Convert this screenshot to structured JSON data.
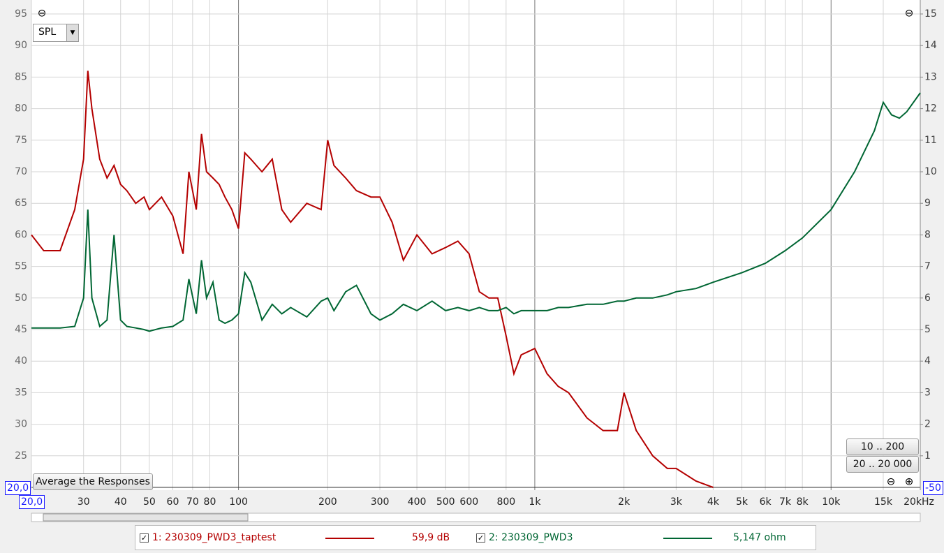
{
  "chart_data": {
    "type": "line",
    "x": [
      20,
      22,
      25,
      28,
      30,
      31,
      32,
      34,
      36,
      38,
      40,
      42,
      45,
      48,
      50,
      55,
      60,
      65,
      68,
      72,
      75,
      78,
      82,
      86,
      90,
      95,
      100,
      105,
      110,
      120,
      130,
      140,
      150,
      170,
      190,
      200,
      210,
      230,
      250,
      280,
      300,
      330,
      360,
      400,
      450,
      500,
      550,
      600,
      650,
      700,
      750,
      800,
      850,
      900,
      1000,
      1100,
      1200,
      1300,
      1500,
      1700,
      1900,
      2000,
      2200,
      2500,
      2800,
      3000,
      3500,
      4000,
      5000,
      6000,
      7000,
      8000,
      10000,
      12000,
      14000,
      15000,
      16000,
      17000,
      18000,
      20000
    ],
    "series": [
      {
        "name": "1: 230309_PWD3_taptest",
        "color": "#b40000",
        "values": [
          60,
          57.5,
          57.5,
          64,
          72,
          86,
          80,
          72,
          69,
          71,
          68,
          67,
          65,
          66,
          64,
          66,
          63,
          57,
          70,
          64,
          76,
          70,
          69,
          68,
          66,
          64,
          61,
          73,
          72,
          70,
          72,
          64,
          62,
          65,
          64,
          75,
          71,
          69,
          67,
          66,
          66,
          62,
          56,
          60,
          57,
          58,
          59,
          57,
          51,
          50,
          50,
          44,
          38,
          41,
          42,
          38,
          36,
          35,
          31,
          29,
          29,
          35,
          29,
          25,
          23,
          23,
          21,
          20,
          null,
          null,
          null,
          null,
          null,
          null,
          null,
          null,
          null,
          null,
          null,
          null
        ]
      },
      {
        "name": "2: 230309_PWD3",
        "color": "#006633",
        "axis": "y2",
        "values": [
          5.05,
          5.05,
          5.05,
          5.1,
          6,
          8.8,
          6,
          5.1,
          5.3,
          8,
          5.3,
          5.1,
          5.05,
          5.0,
          4.95,
          5.05,
          5.1,
          5.3,
          6.6,
          5.5,
          7.2,
          6,
          6.5,
          5.3,
          5.2,
          5.3,
          5.5,
          6.8,
          6.5,
          5.3,
          5.8,
          5.5,
          5.7,
          5.4,
          5.9,
          6.0,
          5.6,
          6.2,
          6.4,
          5.5,
          5.3,
          5.5,
          5.8,
          5.6,
          5.9,
          5.6,
          5.7,
          5.6,
          5.7,
          5.6,
          5.6,
          5.7,
          5.5,
          5.6,
          5.6,
          5.6,
          5.7,
          5.7,
          5.8,
          5.8,
          5.9,
          5.9,
          6.0,
          6.0,
          6.1,
          6.2,
          6.3,
          6.5,
          6.8,
          7.1,
          7.5,
          7.9,
          8.8,
          10.0,
          11.3,
          12.2,
          11.8,
          11.7,
          11.9,
          12.5
        ]
      }
    ],
    "log_x": true,
    "xlim": [
      20,
      20000
    ],
    "xticks": [
      {
        "value": 20,
        "label": "20,0"
      },
      30,
      40,
      50,
      60,
      70,
      80,
      100,
      200,
      300,
      400,
      500,
      600,
      800,
      {
        "value": 1000,
        "label": "1k"
      },
      {
        "value": 2000,
        "label": "2k"
      },
      {
        "value": 3000,
        "label": "3k"
      },
      {
        "value": 4000,
        "label": "4k"
      },
      {
        "value": 5000,
        "label": "5k"
      },
      {
        "value": 6000,
        "label": "6k"
      },
      {
        "value": 7000,
        "label": "7k"
      },
      {
        "value": 8000,
        "label": "8k"
      },
      {
        "value": 10000,
        "label": "10k"
      },
      {
        "value": 15000,
        "label": "15k"
      },
      {
        "value": 20000,
        "label": "20kHz"
      }
    ],
    "ylim": [
      20,
      95
    ],
    "yticks": [
      {
        "value": 20,
        "label": "20,0"
      },
      25,
      30,
      35,
      40,
      45,
      50,
      55,
      60,
      65,
      70,
      75,
      80,
      85,
      90,
      95
    ],
    "y2lim": [
      0,
      15
    ],
    "y2ticks": [
      1,
      2,
      3,
      4,
      5,
      6,
      7,
      8,
      9,
      10,
      11,
      12,
      13,
      14,
      15
    ],
    "grid": true
  },
  "ui": {
    "dropdown": "SPL",
    "right_box": "-50",
    "average_button": "Average the Responses",
    "range_buttons": [
      "10 .. 200",
      "20 .. 20 000"
    ],
    "legend_readouts": [
      "59,9 dB",
      "5,147 ohm"
    ]
  }
}
